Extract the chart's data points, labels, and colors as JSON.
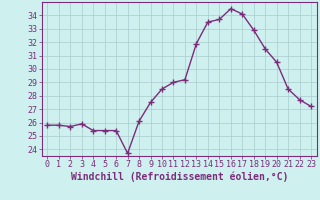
{
  "x": [
    0,
    1,
    2,
    3,
    4,
    5,
    6,
    7,
    8,
    9,
    10,
    11,
    12,
    13,
    14,
    15,
    16,
    17,
    18,
    19,
    20,
    21,
    22,
    23
  ],
  "y": [
    25.8,
    25.8,
    25.7,
    25.9,
    25.4,
    25.4,
    25.4,
    23.7,
    26.1,
    27.5,
    28.5,
    29.0,
    29.2,
    31.9,
    33.5,
    33.7,
    34.5,
    34.1,
    32.9,
    31.5,
    30.5,
    28.5,
    27.7,
    27.2
  ],
  "line_color": "#7b2d7b",
  "marker": "+",
  "marker_size": 4,
  "marker_lw": 1.0,
  "bg_color": "#cef0ee",
  "grid_color": "#aacccc",
  "xlabel": "Windchill (Refroidissement éolien,°C)",
  "ylim": [
    23.5,
    35.0
  ],
  "yticks": [
    24,
    25,
    26,
    27,
    28,
    29,
    30,
    31,
    32,
    33,
    34
  ],
  "xticks": [
    0,
    1,
    2,
    3,
    4,
    5,
    6,
    7,
    8,
    9,
    10,
    11,
    12,
    13,
    14,
    15,
    16,
    17,
    18,
    19,
    20,
    21,
    22,
    23
  ],
  "tick_color": "#7b2d7b",
  "label_color": "#7b2d7b",
  "font_family": "monospace",
  "xlabel_fontsize": 7.0,
  "tick_fontsize": 6.0,
  "linewidth": 1.0
}
